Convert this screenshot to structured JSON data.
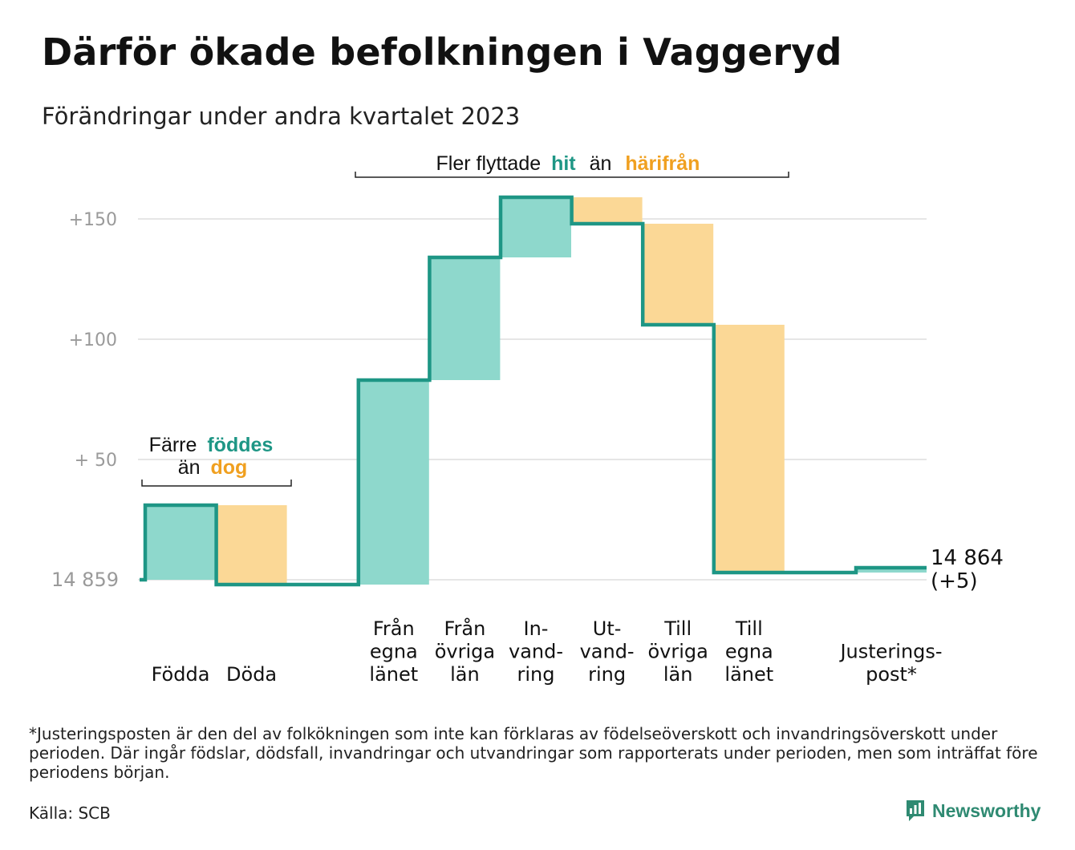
{
  "title": "Därför ökade befolkningen i Vaggeryd",
  "subtitle": "Förändringar under andra kvartalet 2023",
  "colors": {
    "increase": "#8ed8cc",
    "decrease": "#fbd896",
    "line": "#1e9685",
    "teal_text": "#1e9685",
    "orange_text": "#f0a020",
    "grid": "#e6e6e6"
  },
  "annotations": {
    "birth": {
      "prefix": "Färre",
      "teal": "föddes",
      "line2_prefix": "än",
      "orange": "dog"
    },
    "migration": {
      "prefix": "Fler flyttade",
      "teal": "hit",
      "middle": "än",
      "orange": "härifrån"
    }
  },
  "chart_data": {
    "type": "waterfall",
    "title": "Därför ökade befolkningen i Vaggeryd",
    "subtitle": "Förändringar under andra kvartalet 2023",
    "y_tick_labels": [
      "14  859",
      "+  50",
      "+100",
      "+150"
    ],
    "y_ticks": [
      0,
      50,
      100,
      150
    ],
    "ylim": [
      -10,
      170
    ],
    "grid": true,
    "start": {
      "label": "14  859",
      "value": 14859
    },
    "steps": [
      {
        "label_lines": [
          "Födda"
        ],
        "delta": 31,
        "kind": "increase",
        "slot": 0
      },
      {
        "label_lines": [
          "Döda"
        ],
        "delta": -33,
        "kind": "decrease",
        "slot": 1
      },
      {
        "label_lines": [
          "Från",
          "egna",
          "länet"
        ],
        "delta": 85,
        "kind": "increase",
        "slot": 3
      },
      {
        "label_lines": [
          "Från",
          "övriga",
          "län"
        ],
        "delta": 51,
        "kind": "increase",
        "slot": 4
      },
      {
        "label_lines": [
          "In-",
          "vand-",
          "ring"
        ],
        "delta": 25,
        "kind": "increase",
        "slot": 5
      },
      {
        "label_lines": [
          "Ut-",
          "vand-",
          "ring"
        ],
        "delta": -11,
        "kind": "decrease",
        "slot": 6
      },
      {
        "label_lines": [
          "Till",
          "övriga",
          "län"
        ],
        "delta": -42,
        "kind": "decrease",
        "slot": 7
      },
      {
        "label_lines": [
          "Till",
          "egna",
          "länet"
        ],
        "delta": -103,
        "kind": "decrease",
        "slot": 8
      },
      {
        "label_lines": [
          "Justerings-",
          "post*"
        ],
        "delta": 2,
        "kind": "increase",
        "slot": 10
      }
    ],
    "end": {
      "value": 14864,
      "label": "14 864",
      "change_label": "(+5)"
    }
  },
  "footnote": "*Justeringsposten är den del av folkökningen som inte kan förklaras av födelseöverskott och invandringsöverskott under perioden. Där ingår födslar, dödsfall, invandringar och utvandringar som rapporterats under perioden, men som inträffat före periodens början.",
  "source": "Källa: SCB",
  "brand": {
    "name": "Newsworthy",
    "icon": "bar-chart-speech-bubble-icon"
  }
}
